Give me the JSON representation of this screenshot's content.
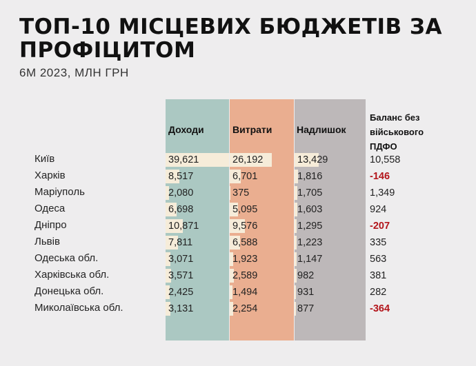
{
  "title": "ТОП-10 МІСЦЕВИХ БЮДЖЕТІВ ЗА ПРОФІЦИТОМ",
  "subtitle": "6М 2023, МЛН ГРН",
  "colors": {
    "income": "#abc8c2",
    "expenses": "#eaae90",
    "surplus": "#bdb8b9",
    "bar": "#f6ecd9",
    "negative": "#b3151b"
  },
  "chart_data": {
    "type": "table",
    "title": "ТОП-10 МІСЦЕВИХ БЮДЖЕТІВ ЗА ПРОФІЦИТОМ",
    "subtitle": "6М 2023, МЛН ГРН",
    "columns": [
      "Доходи",
      "Витрати",
      "Надлишок",
      "Баланс без військового ПДФО"
    ],
    "categories": [
      "Київ",
      "Харків",
      "Маріуполь",
      "Одеса",
      "Дніпро",
      "Львів",
      "Одеська обл.",
      "Харківська обл.",
      "Донецька обл.",
      "Миколаївська обл."
    ],
    "series": [
      {
        "name": "Доходи",
        "values": [
          39621,
          8517,
          2080,
          6698,
          10871,
          7811,
          3071,
          3571,
          2425,
          3131
        ]
      },
      {
        "name": "Витрати",
        "values": [
          26192,
          6701,
          375,
          5095,
          9576,
          6588,
          1923,
          2589,
          1494,
          2254
        ]
      },
      {
        "name": "Надлишок",
        "values": [
          13429,
          1816,
          1705,
          1603,
          1295,
          1223,
          1147,
          982,
          931,
          877
        ]
      },
      {
        "name": "Баланс без військового ПДФО",
        "values": [
          10558,
          -146,
          1349,
          924,
          -207,
          335,
          563,
          381,
          282,
          -364
        ]
      }
    ],
    "display": {
      "income": [
        "39,621",
        "8,517",
        "2,080",
        "6,698",
        "10,871",
        "7,811",
        "3,071",
        "3,571",
        "2,425",
        "3,131"
      ],
      "expenses": [
        "26,192",
        "6,701",
        "375",
        "5,095",
        "9,576",
        "6,588",
        "1,923",
        "2,589",
        "1,494",
        "2,254"
      ],
      "surplus": [
        "13,429",
        "1,816",
        "1,705",
        "1,603",
        "1,295",
        "1,223",
        "1,147",
        "982",
        "931",
        "877"
      ],
      "balance": [
        "10,558",
        "-146",
        "1,349",
        "924",
        "-207",
        "335",
        "563",
        "381",
        "282",
        "-364"
      ]
    },
    "bar_scale_max": 39621
  }
}
